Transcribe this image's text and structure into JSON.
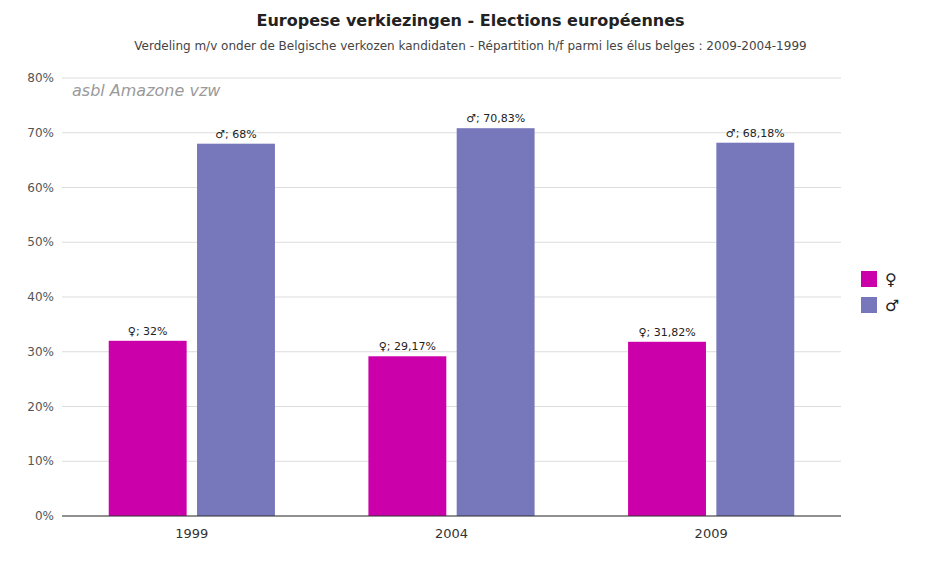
{
  "chart_data": {
    "type": "bar",
    "title": "Europese verkiezingen - Elections européennes",
    "subtitle": "Verdeling m/v onder de Belgische verkozen kandidaten - Répartition h/f parmi les élus belges : 2009-2004-1999",
    "annotations": [
      "asbl Amazone vzw"
    ],
    "categories": [
      "1999",
      "2004",
      "2009"
    ],
    "series": [
      {
        "name": "♀",
        "color": "#cc00aa",
        "values": [
          32.0,
          29.17,
          31.82
        ],
        "value_labels": [
          "♀; 32%",
          "♀; 29,17%",
          "♀; 31,82%"
        ]
      },
      {
        "name": "♂",
        "color": "#7777bb",
        "values": [
          68.0,
          70.83,
          68.18
        ],
        "value_labels": [
          "♂; 68%",
          "♂; 70,83%",
          "♂; 68,18%"
        ]
      }
    ],
    "ylim": [
      0,
      80
    ],
    "yticks": [
      {
        "value": 0,
        "label": "0%"
      },
      {
        "value": 10,
        "label": "10%"
      },
      {
        "value": 20,
        "label": "20%"
      },
      {
        "value": 30,
        "label": "30%"
      },
      {
        "value": 40,
        "label": "40%"
      },
      {
        "value": 50,
        "label": "50%"
      },
      {
        "value": 60,
        "label": "60%"
      },
      {
        "value": 70,
        "label": "70%"
      },
      {
        "value": 80,
        "label": "80%"
      }
    ],
    "grid": true,
    "legend": "right",
    "data_labels": true
  }
}
